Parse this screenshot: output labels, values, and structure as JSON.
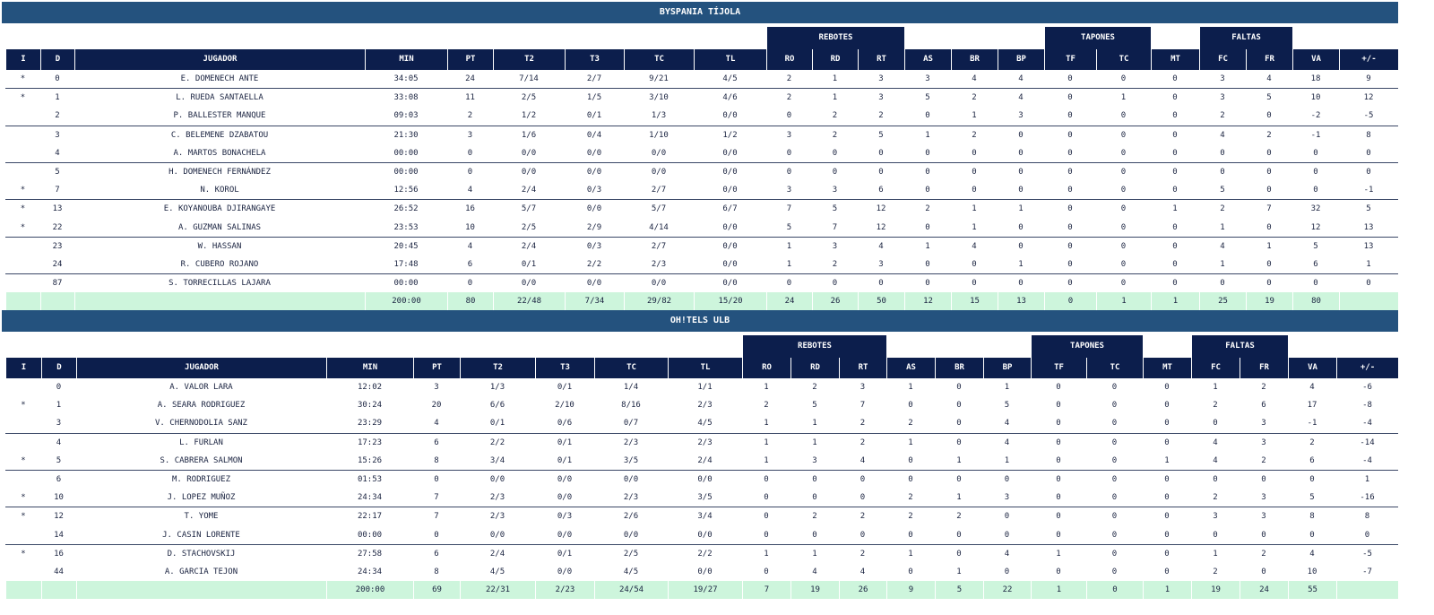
{
  "teams": [
    {
      "name": "BYSPANIA TÍJOLA",
      "groups": [
        "REBOTES",
        "TAPONES",
        "FALTAS"
      ],
      "columns": [
        "I",
        "D",
        "JUGADOR",
        "MIN",
        "PT",
        "T2",
        "T3",
        "TC",
        "TL",
        "RO",
        "RD",
        "RT",
        "AS",
        "BR",
        "BP",
        "TF",
        "TC",
        "MT",
        "FC",
        "FR",
        "VA",
        "+/-"
      ],
      "rows": [
        [
          "*",
          0,
          "E. DOMENECH ANTE",
          "34:05",
          24,
          "7/14",
          "2/7",
          "9/21",
          "4/5",
          2,
          1,
          3,
          3,
          4,
          4,
          0,
          0,
          0,
          3,
          4,
          18,
          9
        ],
        [
          "*",
          1,
          "L. RUEDA SANTAELLA",
          "33:08",
          11,
          "2/5",
          "1/5",
          "3/10",
          "4/6",
          2,
          1,
          3,
          5,
          2,
          4,
          0,
          1,
          0,
          3,
          5,
          10,
          12
        ],
        [
          null,
          2,
          "P. BALLESTER MANQUE",
          "09:03",
          2,
          "1/2",
          "0/1",
          "1/3",
          "0/0",
          0,
          2,
          2,
          0,
          1,
          3,
          0,
          0,
          0,
          2,
          0,
          -2,
          -5
        ],
        [
          null,
          3,
          "C. BELEMENE DZABATOU",
          "21:30",
          3,
          "1/6",
          "0/4",
          "1/10",
          "1/2",
          3,
          2,
          5,
          1,
          2,
          0,
          0,
          0,
          0,
          4,
          2,
          -1,
          8
        ],
        [
          null,
          4,
          "A. MARTOS BONACHELA",
          "00:00",
          0,
          "0/0",
          "0/0",
          "0/0",
          "0/0",
          0,
          0,
          0,
          0,
          0,
          0,
          0,
          0,
          0,
          0,
          0,
          0,
          0
        ],
        [
          null,
          5,
          "H. DOMENECH FERNÁNDEZ",
          "00:00",
          0,
          "0/0",
          "0/0",
          "0/0",
          "0/0",
          0,
          0,
          0,
          0,
          0,
          0,
          0,
          0,
          0,
          0,
          0,
          0,
          0
        ],
        [
          "*",
          7,
          "N. KOROL",
          "12:56",
          4,
          "2/4",
          "0/3",
          "2/7",
          "0/0",
          3,
          3,
          6,
          0,
          0,
          0,
          0,
          0,
          0,
          5,
          0,
          0,
          -1
        ],
        [
          "*",
          13,
          "E. KOYANOUBA DJIRANGAYE",
          "26:52",
          16,
          "5/7",
          "0/0",
          "5/7",
          "6/7",
          7,
          5,
          12,
          2,
          1,
          1,
          0,
          0,
          1,
          2,
          7,
          32,
          5
        ],
        [
          "*",
          22,
          "A. GUZMAN SALINAS",
          "23:53",
          10,
          "2/5",
          "2/9",
          "4/14",
          "0/0",
          5,
          7,
          12,
          0,
          1,
          0,
          0,
          0,
          0,
          1,
          0,
          12,
          13
        ],
        [
          null,
          23,
          "W. HASSAN",
          "20:45",
          4,
          "2/4",
          "0/3",
          "2/7",
          "0/0",
          1,
          3,
          4,
          1,
          4,
          0,
          0,
          0,
          0,
          4,
          1,
          5,
          13
        ],
        [
          null,
          24,
          "R. CUBERO ROJANO",
          "17:48",
          6,
          "0/1",
          "2/2",
          "2/3",
          "0/0",
          1,
          2,
          3,
          0,
          0,
          1,
          0,
          0,
          0,
          1,
          0,
          6,
          1
        ],
        [
          null,
          87,
          "S. TORRECILLAS LAJARA",
          "00:00",
          0,
          "0/0",
          "0/0",
          "0/0",
          "0/0",
          0,
          0,
          0,
          0,
          0,
          0,
          0,
          0,
          0,
          0,
          0,
          0,
          0
        ]
      ],
      "totals": [
        "200:00",
        80,
        "22/48",
        "7/34",
        "29/82",
        "15/20",
        24,
        26,
        50,
        12,
        15,
        13,
        0,
        1,
        1,
        25,
        19,
        80
      ]
    },
    {
      "name": "OH!TELS ULB",
      "groups": [
        "REBOTES",
        "TAPONES",
        "FALTAS"
      ],
      "columns": [
        "I",
        "D",
        "JUGADOR",
        "MIN",
        "PT",
        "T2",
        "T3",
        "TC",
        "TL",
        "RO",
        "RD",
        "RT",
        "AS",
        "BR",
        "BP",
        "TF",
        "TC",
        "MT",
        "FC",
        "FR",
        "VA",
        "+/-"
      ],
      "rows": [
        [
          null,
          0,
          "A. VALOR LARA",
          "12:02",
          3,
          "1/3",
          "0/1",
          "1/4",
          "1/1",
          1,
          2,
          3,
          1,
          0,
          1,
          0,
          0,
          0,
          1,
          2,
          4,
          -6
        ],
        [
          "*",
          1,
          "A. SEARA RODRIGUEZ",
          "30:24",
          20,
          "6/6",
          "2/10",
          "8/16",
          "2/3",
          2,
          5,
          7,
          0,
          0,
          5,
          0,
          0,
          0,
          2,
          6,
          17,
          -8
        ],
        [
          null,
          3,
          "V. CHERNODOLIA SANZ",
          "23:29",
          4,
          "0/1",
          "0/6",
          "0/7",
          "4/5",
          1,
          1,
          2,
          2,
          0,
          4,
          0,
          0,
          0,
          0,
          3,
          -1,
          -4
        ],
        [
          null,
          4,
          "L. FURLAN",
          "17:23",
          6,
          "2/2",
          "0/1",
          "2/3",
          "2/3",
          1,
          1,
          2,
          1,
          0,
          4,
          0,
          0,
          0,
          4,
          3,
          2,
          -14
        ],
        [
          "*",
          5,
          "S. CABRERA SALMON",
          "15:26",
          8,
          "3/4",
          "0/1",
          "3/5",
          "2/4",
          1,
          3,
          4,
          0,
          1,
          1,
          0,
          0,
          1,
          4,
          2,
          6,
          -4
        ],
        [
          null,
          6,
          "M. RODRIGUEZ",
          "01:53",
          0,
          "0/0",
          "0/0",
          "0/0",
          "0/0",
          0,
          0,
          0,
          0,
          0,
          0,
          0,
          0,
          0,
          0,
          0,
          0,
          1
        ],
        [
          "*",
          10,
          "J. LOPEZ MUÑOZ",
          "24:34",
          7,
          "2/3",
          "0/0",
          "2/3",
          "3/5",
          0,
          0,
          0,
          2,
          1,
          3,
          0,
          0,
          0,
          2,
          3,
          5,
          -16
        ],
        [
          "*",
          12,
          "T. YOME",
          "22:17",
          7,
          "2/3",
          "0/3",
          "2/6",
          "3/4",
          0,
          2,
          2,
          2,
          2,
          0,
          0,
          0,
          0,
          3,
          3,
          8,
          8
        ],
        [
          null,
          14,
          "J. CASIN LORENTE",
          "00:00",
          0,
          "0/0",
          "0/0",
          "0/0",
          "0/0",
          0,
          0,
          0,
          0,
          0,
          0,
          0,
          0,
          0,
          0,
          0,
          0,
          0
        ],
        [
          "*",
          16,
          "D. STACHOVSKIJ",
          "27:58",
          6,
          "2/4",
          "0/1",
          "2/5",
          "2/2",
          1,
          1,
          2,
          1,
          0,
          4,
          1,
          0,
          0,
          1,
          2,
          4,
          -5
        ],
        [
          null,
          44,
          "A. GARCIA TEJON",
          "24:34",
          8,
          "4/5",
          "0/0",
          "4/5",
          "0/0",
          0,
          4,
          4,
          0,
          1,
          0,
          0,
          0,
          0,
          2,
          0,
          10,
          -7
        ]
      ],
      "totals": [
        "200:00",
        69,
        "22/31",
        "2/23",
        "24/54",
        "19/27",
        7,
        19,
        26,
        9,
        5,
        22,
        1,
        0,
        1,
        19,
        24,
        55
      ]
    }
  ]
}
